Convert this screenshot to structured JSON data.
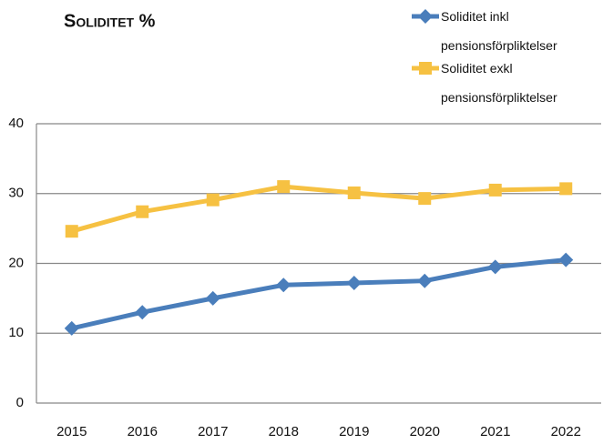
{
  "chart_data": {
    "type": "line",
    "title": "Soliditet %",
    "categories": [
      "2015",
      "2016",
      "2017",
      "2018",
      "2019",
      "2020",
      "2021",
      "2022"
    ],
    "series": [
      {
        "name": "Soliditet inkl pensionsförpliktelser",
        "color": "#4a7ebb",
        "marker": "diamond",
        "values": [
          10.7,
          13.0,
          15.0,
          16.9,
          17.2,
          17.5,
          19.5,
          20.5
        ]
      },
      {
        "name": "Soliditet exkl pensionsförpliktelser",
        "color": "#f6c142",
        "marker": "square",
        "values": [
          24.6,
          27.4,
          29.1,
          31.0,
          30.1,
          29.3,
          30.5,
          30.7
        ]
      }
    ],
    "ylim": [
      0,
      40
    ],
    "yticks": [
      0,
      10,
      20,
      30,
      40
    ],
    "grid": true,
    "legend": "top-right"
  }
}
